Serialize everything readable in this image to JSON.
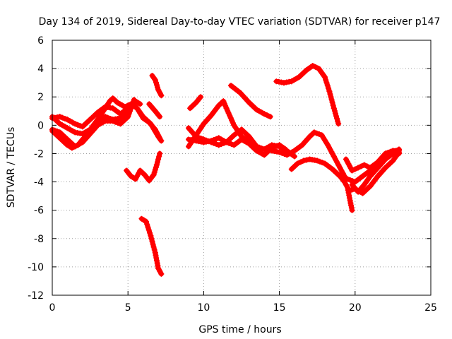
{
  "chart_data": {
    "type": "scatter",
    "title": "Day 134 of 2019, Sidereal Day-to-day VTEC variation (SDTVAR) for receiver p147",
    "xlabel": "GPS time / hours",
    "ylabel": "SDTVAR / TECUs",
    "xlim": [
      0,
      25
    ],
    "ylim": [
      -12,
      6
    ],
    "xticks": [
      0,
      5,
      10,
      15,
      20,
      25
    ],
    "yticks": [
      -12,
      -10,
      -8,
      -6,
      -4,
      -2,
      0,
      2,
      4,
      6
    ],
    "grid": true,
    "marker": "+",
    "color": "#ff0000",
    "tracks": [
      {
        "name": "track-1",
        "points": [
          [
            0,
            0.5
          ],
          [
            0.5,
            0.6
          ],
          [
            1,
            0.4
          ],
          [
            1.5,
            0.1
          ],
          [
            2,
            -0.1
          ],
          [
            2.5,
            0.4
          ],
          [
            3,
            0.9
          ],
          [
            3.5,
            1.3
          ],
          [
            4,
            1.2
          ],
          [
            4.5,
            0.8
          ],
          [
            5,
            1.2
          ],
          [
            5.3,
            1.5
          ],
          [
            5.6,
            1.2
          ],
          [
            6,
            0.6
          ],
          [
            6.5,
            0.1
          ],
          [
            7,
            -0.8
          ],
          [
            7.2,
            -1.1
          ]
        ]
      },
      {
        "name": "track-2",
        "points": [
          [
            0,
            0.6
          ],
          [
            0.5,
            0.1
          ],
          [
            1,
            -0.2
          ],
          [
            1.5,
            -0.5
          ],
          [
            2,
            -0.6
          ],
          [
            2.5,
            -0.3
          ],
          [
            3,
            0.4
          ],
          [
            3.5,
            1.2
          ],
          [
            3.8,
            1.7
          ],
          [
            4,
            1.9
          ],
          [
            4.3,
            1.6
          ],
          [
            4.8,
            1.3
          ],
          [
            5.2,
            1.5
          ],
          [
            5.6,
            1.2
          ],
          [
            6,
            0.5
          ],
          [
            6.4,
            0.2
          ],
          [
            6.8,
            -0.3
          ],
          [
            7.1,
            -0.9
          ]
        ]
      },
      {
        "name": "track-3",
        "points": [
          [
            0,
            -0.4
          ],
          [
            0.5,
            -0.9
          ],
          [
            1,
            -1.4
          ],
          [
            1.3,
            -1.6
          ],
          [
            1.7,
            -1.4
          ],
          [
            2,
            -1.0
          ],
          [
            2.5,
            -0.5
          ],
          [
            3,
            0.1
          ],
          [
            3.5,
            0.6
          ],
          [
            4,
            0.4
          ],
          [
            4.5,
            0.5
          ],
          [
            5,
            0.9
          ],
          [
            5.5,
            1.7
          ],
          [
            5.8,
            1.5
          ]
        ]
      },
      {
        "name": "track-4",
        "points": [
          [
            0,
            -0.3
          ],
          [
            0.5,
            -0.5
          ],
          [
            1,
            -1.0
          ],
          [
            1.5,
            -1.5
          ],
          [
            2,
            -1.2
          ],
          [
            2.5,
            -0.6
          ],
          [
            3,
            0.0
          ],
          [
            3.5,
            0.3
          ],
          [
            4,
            0.3
          ],
          [
            4.5,
            0.1
          ],
          [
            5,
            0.6
          ],
          [
            5.4,
            1.8
          ]
        ]
      },
      {
        "name": "track-5",
        "points": [
          [
            6.4,
            1.5
          ],
          [
            6.8,
            1.0
          ],
          [
            7.1,
            0.6
          ]
        ]
      },
      {
        "name": "track-6",
        "points": [
          [
            6.6,
            3.5
          ],
          [
            6.8,
            3.2
          ],
          [
            7.0,
            2.5
          ],
          [
            7.2,
            2.1
          ]
        ]
      },
      {
        "name": "track-7",
        "points": [
          [
            4.9,
            -3.2
          ],
          [
            5.2,
            -3.6
          ],
          [
            5.5,
            -3.8
          ],
          [
            5.8,
            -3.2
          ],
          [
            6.1,
            -3.5
          ],
          [
            6.4,
            -3.9
          ],
          [
            6.7,
            -3.5
          ],
          [
            6.9,
            -2.8
          ],
          [
            7.1,
            -2.0
          ]
        ]
      },
      {
        "name": "track-8",
        "points": [
          [
            5.9,
            -6.6
          ],
          [
            6.2,
            -6.8
          ],
          [
            6.5,
            -7.8
          ],
          [
            6.8,
            -9.0
          ],
          [
            7.0,
            -10.1
          ],
          [
            7.2,
            -10.5
          ]
        ]
      },
      {
        "name": "track-9",
        "points": [
          [
            9.1,
            1.2
          ],
          [
            9.5,
            1.6
          ],
          [
            9.8,
            2.0
          ]
        ]
      },
      {
        "name": "track-10",
        "points": [
          [
            9.0,
            -1.5
          ],
          [
            9.5,
            -0.7
          ],
          [
            10,
            0.1
          ],
          [
            10.5,
            0.7
          ],
          [
            11,
            1.4
          ],
          [
            11.3,
            1.7
          ],
          [
            11.5,
            1.2
          ],
          [
            12,
            0.0
          ],
          [
            12.5,
            -0.8
          ],
          [
            13,
            -1.2
          ],
          [
            13.5,
            -1.6
          ],
          [
            14,
            -1.7
          ],
          [
            14.5,
            -1.8
          ],
          [
            15,
            -1.9
          ],
          [
            15.5,
            -2.1
          ],
          [
            16,
            -1.8
          ],
          [
            16.5,
            -1.4
          ],
          [
            17,
            -0.8
          ],
          [
            17.3,
            -0.5
          ],
          [
            17.8,
            -0.7
          ],
          [
            18.2,
            -1.4
          ],
          [
            18.6,
            -2.2
          ],
          [
            18.9,
            -2.8
          ],
          [
            19.2,
            -3.4
          ],
          [
            19.4,
            -3.8
          ]
        ]
      },
      {
        "name": "track-11",
        "points": [
          [
            9.0,
            -0.2
          ],
          [
            9.5,
            -0.8
          ],
          [
            10,
            -1.0
          ],
          [
            10.5,
            -1.2
          ],
          [
            11,
            -1.4
          ],
          [
            11.5,
            -1.2
          ],
          [
            12,
            -0.7
          ],
          [
            12.5,
            -0.3
          ],
          [
            13,
            -0.8
          ],
          [
            13.5,
            -1.5
          ],
          [
            14,
            -1.7
          ],
          [
            14.5,
            -1.4
          ],
          [
            15,
            -1.5
          ],
          [
            15.5,
            -1.8
          ],
          [
            16,
            -2.2
          ]
        ]
      },
      {
        "name": "track-12",
        "points": [
          [
            9.0,
            -1.0
          ],
          [
            9.5,
            -1.1
          ],
          [
            10,
            -1.2
          ],
          [
            10.5,
            -1.1
          ],
          [
            11,
            -0.9
          ],
          [
            11.5,
            -1.2
          ],
          [
            12,
            -1.4
          ],
          [
            12.5,
            -1.0
          ],
          [
            13,
            -1.3
          ],
          [
            13.5,
            -1.8
          ],
          [
            14,
            -2.1
          ],
          [
            14.5,
            -1.6
          ],
          [
            15,
            -1.4
          ],
          [
            15.4,
            -1.7
          ]
        ]
      },
      {
        "name": "track-13",
        "points": [
          [
            11.8,
            2.8
          ],
          [
            12.4,
            2.3
          ],
          [
            13,
            1.6
          ],
          [
            13.5,
            1.1
          ],
          [
            14,
            0.8
          ],
          [
            14.4,
            0.6
          ]
        ]
      },
      {
        "name": "track-14",
        "points": [
          [
            14.8,
            3.1
          ],
          [
            15.3,
            3.0
          ],
          [
            15.8,
            3.1
          ],
          [
            16.3,
            3.4
          ],
          [
            16.8,
            3.9
          ],
          [
            17.2,
            4.2
          ],
          [
            17.6,
            4.0
          ],
          [
            18.0,
            3.4
          ],
          [
            18.3,
            2.4
          ],
          [
            18.6,
            1.2
          ],
          [
            18.9,
            0.1
          ]
        ]
      },
      {
        "name": "track-15",
        "points": [
          [
            15.8,
            -3.1
          ],
          [
            16.2,
            -2.7
          ],
          [
            16.6,
            -2.5
          ],
          [
            17,
            -2.4
          ],
          [
            17.5,
            -2.5
          ],
          [
            18,
            -2.7
          ],
          [
            18.5,
            -3.1
          ],
          [
            19,
            -3.6
          ],
          [
            19.3,
            -4.0
          ],
          [
            19.5,
            -4.4
          ],
          [
            19.7,
            -5.5
          ],
          [
            19.8,
            -6.0
          ]
        ]
      },
      {
        "name": "track-16",
        "points": [
          [
            19.4,
            -2.4
          ],
          [
            19.8,
            -3.2
          ],
          [
            20.2,
            -3.0
          ],
          [
            20.6,
            -2.8
          ],
          [
            21,
            -3.0
          ],
          [
            21.5,
            -2.6
          ],
          [
            22,
            -2.0
          ],
          [
            22.5,
            -1.8
          ],
          [
            22.9,
            -1.8
          ]
        ]
      },
      {
        "name": "track-17",
        "points": [
          [
            19.6,
            -4.6
          ],
          [
            20,
            -4.5
          ],
          [
            20.5,
            -4.8
          ],
          [
            21,
            -4.3
          ],
          [
            21.5,
            -3.6
          ],
          [
            22,
            -3.0
          ],
          [
            22.5,
            -2.5
          ],
          [
            22.9,
            -1.9
          ]
        ]
      },
      {
        "name": "track-18",
        "points": [
          [
            19.8,
            -4.2
          ],
          [
            20.2,
            -4.7
          ],
          [
            20.6,
            -4.2
          ],
          [
            21,
            -3.6
          ],
          [
            21.5,
            -3.0
          ],
          [
            22,
            -2.4
          ],
          [
            22.5,
            -2.0
          ],
          [
            22.9,
            -1.7
          ]
        ]
      },
      {
        "name": "track-19",
        "points": [
          [
            19.5,
            -3.8
          ],
          [
            20,
            -4.0
          ],
          [
            20.5,
            -3.6
          ],
          [
            21,
            -3.2
          ],
          [
            21.5,
            -2.6
          ],
          [
            22,
            -2.1
          ],
          [
            22.5,
            -1.9
          ],
          [
            22.9,
            -2.0
          ]
        ]
      }
    ]
  }
}
